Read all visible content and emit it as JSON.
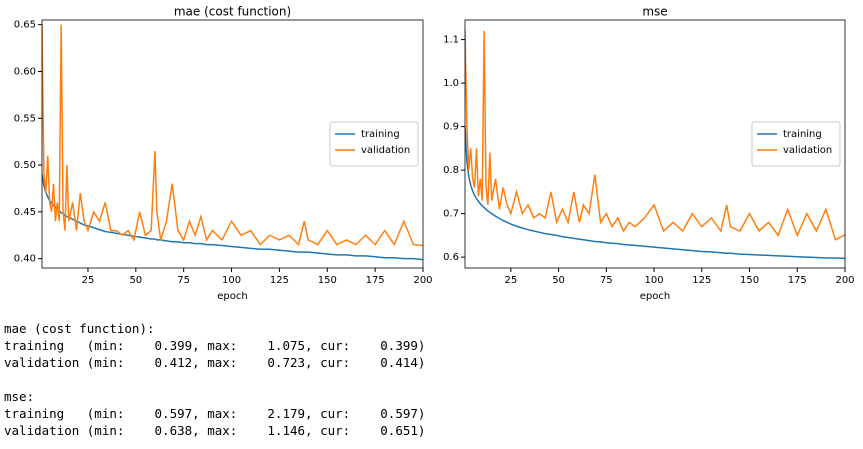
{
  "chart_data": [
    {
      "type": "line",
      "title": "mae (cost function)",
      "xlabel": "epoch",
      "legend": "center right",
      "x": [
        1,
        2,
        3,
        4,
        5,
        6,
        7,
        8,
        9,
        10,
        11,
        12,
        13,
        14,
        15,
        17,
        19,
        21,
        23,
        25,
        28,
        31,
        34,
        37,
        40,
        43,
        46,
        49,
        52,
        55,
        58,
        60,
        61,
        63,
        66,
        69,
        72,
        75,
        78,
        81,
        84,
        87,
        90,
        95,
        100,
        105,
        110,
        115,
        120,
        125,
        130,
        135,
        138,
        140,
        145,
        150,
        155,
        160,
        165,
        170,
        175,
        180,
        185,
        190,
        195,
        200
      ],
      "xlim": [
        1,
        200
      ],
      "xticks": [
        25,
        50,
        75,
        100,
        125,
        150,
        175,
        200
      ],
      "ylim": [
        0.39,
        0.655
      ],
      "yticks": [
        {
          "value": 0.4,
          "label": "0.40"
        },
        0.45,
        {
          "value": 0.5,
          "label": "0.50"
        },
        0.55,
        {
          "value": 0.6,
          "label": "0.60"
        },
        0.65
      ],
      "series": [
        {
          "name": "training",
          "color": "#1f77b4",
          "values": [
            0.49,
            0.478,
            0.471,
            0.466,
            0.462,
            0.459,
            0.457,
            0.455,
            0.453,
            0.451,
            0.449,
            0.448,
            0.446,
            0.445,
            0.444,
            0.442,
            0.44,
            0.438,
            0.436,
            0.435,
            0.433,
            0.431,
            0.429,
            0.428,
            0.427,
            0.426,
            0.425,
            0.424,
            0.423,
            0.422,
            0.421,
            0.421,
            0.42,
            0.42,
            0.419,
            0.418,
            0.418,
            0.417,
            0.417,
            0.416,
            0.416,
            0.415,
            0.415,
            0.414,
            0.413,
            0.412,
            0.411,
            0.41,
            0.41,
            0.409,
            0.408,
            0.407,
            0.407,
            0.407,
            0.406,
            0.405,
            0.404,
            0.404,
            0.403,
            0.403,
            0.402,
            0.401,
            0.401,
            0.4,
            0.4,
            0.399
          ]
        },
        {
          "name": "validation",
          "color": "#ff7f0e",
          "values": [
            0.65,
            0.49,
            0.47,
            0.51,
            0.46,
            0.45,
            0.48,
            0.44,
            0.46,
            0.44,
            0.65,
            0.45,
            0.43,
            0.5,
            0.44,
            0.46,
            0.43,
            0.47,
            0.44,
            0.43,
            0.45,
            0.44,
            0.46,
            0.43,
            0.43,
            0.425,
            0.43,
            0.42,
            0.45,
            0.425,
            0.43,
            0.515,
            0.45,
            0.42,
            0.44,
            0.48,
            0.43,
            0.42,
            0.44,
            0.425,
            0.445,
            0.42,
            0.43,
            0.42,
            0.44,
            0.425,
            0.43,
            0.415,
            0.425,
            0.42,
            0.425,
            0.415,
            0.44,
            0.42,
            0.415,
            0.43,
            0.415,
            0.42,
            0.415,
            0.425,
            0.415,
            0.43,
            0.415,
            0.44,
            0.415,
            0.414
          ]
        }
      ]
    },
    {
      "type": "line",
      "title": "mse",
      "xlabel": "epoch",
      "legend": "center right",
      "x": [
        1,
        2,
        3,
        4,
        5,
        6,
        7,
        8,
        9,
        10,
        11,
        12,
        13,
        14,
        15,
        17,
        19,
        21,
        23,
        25,
        28,
        31,
        34,
        37,
        40,
        43,
        46,
        49,
        52,
        55,
        58,
        60,
        61,
        63,
        66,
        69,
        72,
        75,
        78,
        81,
        84,
        87,
        90,
        95,
        100,
        105,
        110,
        115,
        120,
        125,
        130,
        135,
        138,
        140,
        145,
        150,
        155,
        160,
        165,
        170,
        175,
        180,
        185,
        190,
        195,
        200
      ],
      "xlim": [
        1,
        200
      ],
      "xticks": [
        25,
        50,
        75,
        100,
        125,
        150,
        175,
        200
      ],
      "ylim": [
        0.575,
        1.145
      ],
      "yticks": [
        0.6,
        0.7,
        0.8,
        0.9,
        {
          "value": 1.0,
          "label": "1.0"
        },
        1.1
      ],
      "series": [
        {
          "name": "training",
          "color": "#1f77b4",
          "values": [
            0.9,
            0.82,
            0.785,
            0.765,
            0.752,
            0.742,
            0.735,
            0.728,
            0.723,
            0.718,
            0.714,
            0.71,
            0.706,
            0.703,
            0.7,
            0.694,
            0.689,
            0.684,
            0.68,
            0.676,
            0.671,
            0.667,
            0.663,
            0.66,
            0.657,
            0.654,
            0.652,
            0.65,
            0.647,
            0.645,
            0.643,
            0.642,
            0.641,
            0.64,
            0.638,
            0.636,
            0.635,
            0.633,
            0.632,
            0.631,
            0.629,
            0.628,
            0.627,
            0.625,
            0.623,
            0.621,
            0.619,
            0.617,
            0.615,
            0.613,
            0.612,
            0.61,
            0.609,
            0.609,
            0.607,
            0.606,
            0.605,
            0.604,
            0.603,
            0.602,
            0.601,
            0.6,
            0.599,
            0.598,
            0.598,
            0.597
          ]
        },
        {
          "name": "validation",
          "color": "#ff7f0e",
          "values": [
            1.12,
            0.9,
            0.8,
            0.85,
            0.78,
            0.76,
            0.85,
            0.74,
            0.78,
            0.73,
            1.12,
            0.76,
            0.72,
            0.84,
            0.73,
            0.78,
            0.71,
            0.76,
            0.72,
            0.7,
            0.75,
            0.7,
            0.72,
            0.69,
            0.7,
            0.69,
            0.75,
            0.68,
            0.71,
            0.68,
            0.75,
            0.7,
            0.68,
            0.72,
            0.7,
            0.79,
            0.68,
            0.7,
            0.67,
            0.69,
            0.66,
            0.68,
            0.67,
            0.69,
            0.72,
            0.66,
            0.68,
            0.66,
            0.7,
            0.67,
            0.69,
            0.66,
            0.72,
            0.67,
            0.66,
            0.7,
            0.66,
            0.68,
            0.65,
            0.71,
            0.65,
            0.7,
            0.66,
            0.71,
            0.64,
            0.651
          ]
        }
      ]
    }
  ],
  "log": {
    "sections": [
      {
        "title": "mae (cost function):",
        "lines": [
          "training   (min:    0.399, max:    1.075, cur:    0.399)",
          "validation (min:    0.412, max:    0.723, cur:    0.414)"
        ]
      },
      {
        "title": "mse:",
        "lines": [
          "training   (min:    0.597, max:    2.179, cur:    0.597)",
          "validation (min:    0.638, max:    1.146, cur:    0.651)"
        ]
      }
    ]
  }
}
